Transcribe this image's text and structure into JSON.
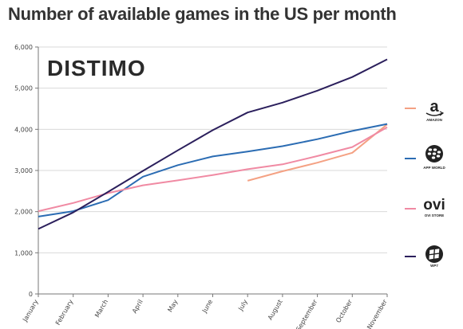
{
  "chart_data": {
    "type": "line",
    "title": "Number of available games in the US per month",
    "watermark": "DISTIMO",
    "categories": [
      "January",
      "February",
      "March",
      "April",
      "May",
      "June",
      "July",
      "August",
      "September",
      "October",
      "November"
    ],
    "y_ticks": [
      "0",
      "1,000",
      "2,000",
      "3,000",
      "4,000",
      "5,000",
      "6,000"
    ],
    "ylim": [
      0,
      6000
    ],
    "grid": true,
    "legend_position": "right",
    "series": [
      {
        "name": "AMAZON",
        "color": "#f4a183",
        "values": [
          null,
          null,
          null,
          null,
          null,
          null,
          2750,
          2980,
          3190,
          3430,
          4120
        ]
      },
      {
        "name": "APP WORLD",
        "color": "#2b6cb3",
        "values": [
          1880,
          2010,
          2280,
          2850,
          3130,
          3340,
          3460,
          3590,
          3760,
          3960,
          4130
        ]
      },
      {
        "name": "OVI STORE",
        "color": "#f08aa3",
        "values": [
          2010,
          2210,
          2450,
          2640,
          2760,
          2890,
          3030,
          3150,
          3350,
          3570,
          4050
        ]
      },
      {
        "name": "WP7",
        "color": "#2b1f5c",
        "values": [
          1580,
          1980,
          2480,
          2990,
          3490,
          3980,
          4410,
          4650,
          4940,
          5270,
          5700
        ]
      }
    ]
  },
  "legend": {
    "amazon_caption": "AMAZON",
    "amazon_glyph": "a",
    "appworld_caption": "APP WORLD",
    "ovi_logo": "ovi",
    "ovi_caption": "OVI STORE",
    "wp7_caption": "WP7"
  },
  "icons": {
    "amazon": "amazon-logo-icon",
    "appworld": "blackberry-logo-icon",
    "ovi": "ovi-logo-icon",
    "wp7": "windows-phone-logo-icon"
  }
}
